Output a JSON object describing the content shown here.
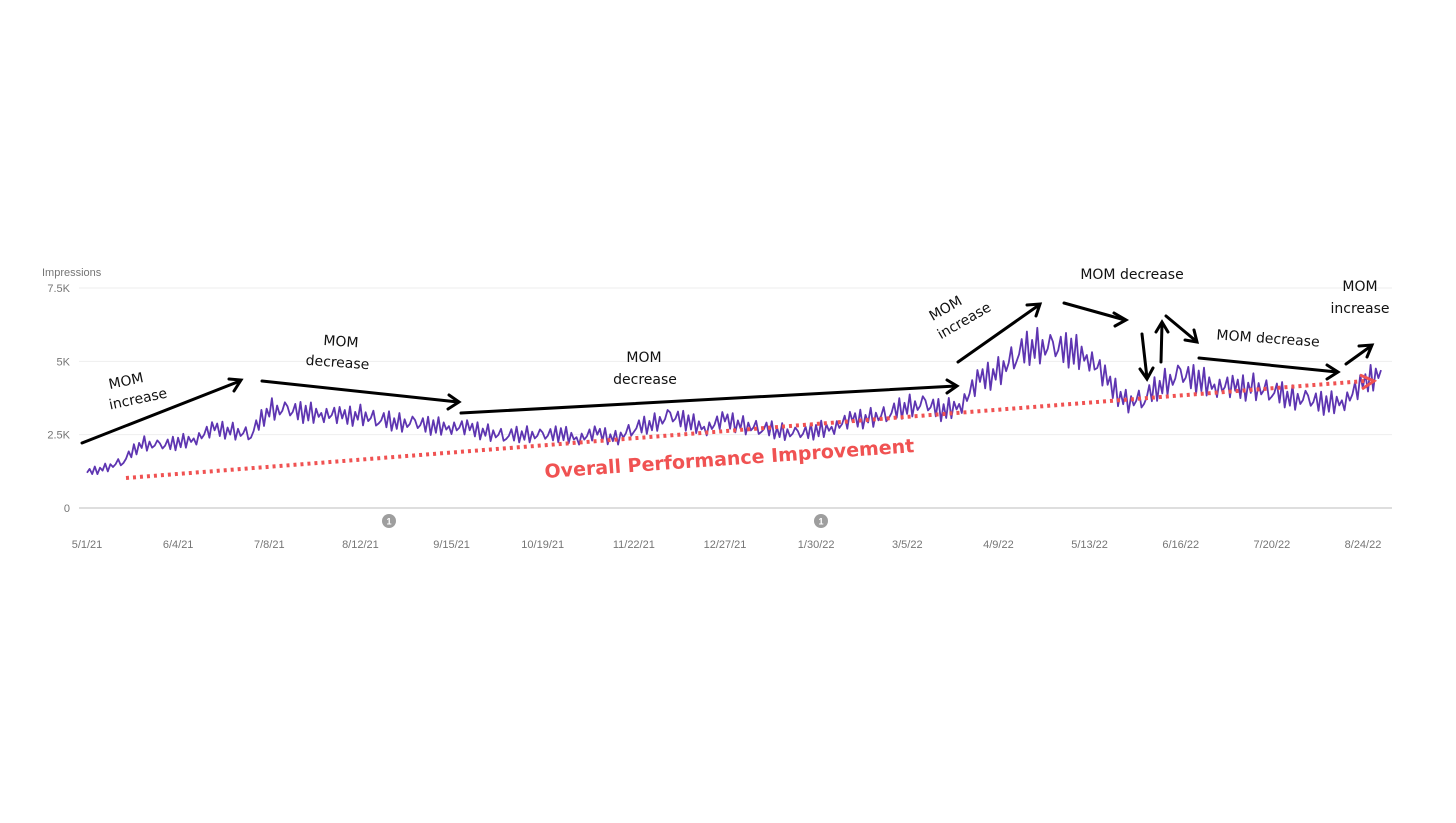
{
  "chart_data": {
    "type": "line",
    "ylabel": "Impressions",
    "ylim": [
      0,
      7500
    ],
    "yticks": [
      "0",
      "2.5K",
      "5K",
      "7.5K"
    ],
    "categories": [
      "5/1/21",
      "6/4/21",
      "7/8/21",
      "8/12/21",
      "9/15/21",
      "10/19/21",
      "11/22/21",
      "12/27/21",
      "1/30/22",
      "3/5/22",
      "4/9/22",
      "5/13/22",
      "6/16/22",
      "7/20/22",
      "8/24/22"
    ],
    "grid": true,
    "series": [
      {
        "color": "#5e35b1",
        "x": [
          "5/1/21",
          "5/8/21",
          "5/15/21",
          "5/22/21",
          "5/29/21",
          "6/4/21",
          "6/11/21",
          "6/18/21",
          "6/25/21",
          "7/1/21",
          "7/8/21",
          "7/15/21",
          "7/22/21",
          "7/29/21",
          "8/5/21",
          "8/12/21",
          "8/19/21",
          "8/26/21",
          "9/2/21",
          "9/9/21",
          "9/15/21",
          "9/22/21",
          "9/29/21",
          "10/6/21",
          "10/13/21",
          "10/19/21",
          "10/26/21",
          "11/2/21",
          "11/9/21",
          "11/16/21",
          "11/22/21",
          "11/29/21",
          "12/6/21",
          "12/13/21",
          "12/20/21",
          "12/27/21",
          "1/3/22",
          "1/10/22",
          "1/17/22",
          "1/24/22",
          "1/30/22",
          "2/6/22",
          "2/13/22",
          "2/20/22",
          "2/27/22",
          "3/5/22",
          "3/12/22",
          "3/19/22",
          "3/26/22",
          "4/2/22",
          "4/9/22",
          "4/16/22",
          "4/23/22",
          "4/30/22",
          "5/7/22",
          "5/13/22",
          "5/20/22",
          "5/27/22",
          "6/3/22",
          "6/10/22",
          "6/16/22",
          "6/23/22",
          "6/30/22",
          "7/7/22",
          "7/14/22",
          "7/20/22",
          "7/27/22",
          "8/3/22",
          "8/10/22",
          "8/17/22",
          "8/24/22",
          "8/31/22"
        ],
        "values": [
          1200,
          1350,
          1600,
          2200,
          2100,
          2200,
          2400,
          2650,
          2600,
          2500,
          3350,
          3300,
          3200,
          3250,
          3050,
          3150,
          3000,
          2900,
          2850,
          2750,
          2800,
          2650,
          2550,
          2450,
          2500,
          2450,
          2500,
          2400,
          2500,
          2350,
          2700,
          2850,
          3100,
          2900,
          2750,
          2950,
          2800,
          2700,
          2600,
          2500,
          2600,
          2800,
          2950,
          3050,
          3200,
          3450,
          3500,
          3250,
          3600,
          4300,
          4600,
          5200,
          5500,
          5400,
          5300,
          5200,
          4200,
          3600,
          3700,
          4200,
          4500,
          4300,
          4200,
          4000,
          4100,
          3950,
          3750,
          3650,
          3500,
          3700,
          4100,
          4700
        ]
      }
    ],
    "events": [
      "1",
      "1"
    ],
    "annotations": {
      "a1": [
        "MOM",
        "increase"
      ],
      "a2": [
        "MOM",
        "decrease"
      ],
      "a3": [
        "MOM",
        "decrease"
      ],
      "a4": [
        "MOM",
        "increase"
      ],
      "a5": "MOM decrease",
      "a6": "MOM decrease",
      "a7": [
        "MOM",
        "increase"
      ],
      "overall": "Overall Performance Improvement"
    },
    "colors": {
      "line": "#5e35b1",
      "trend": "#f05252",
      "arrows": "#000000"
    }
  }
}
